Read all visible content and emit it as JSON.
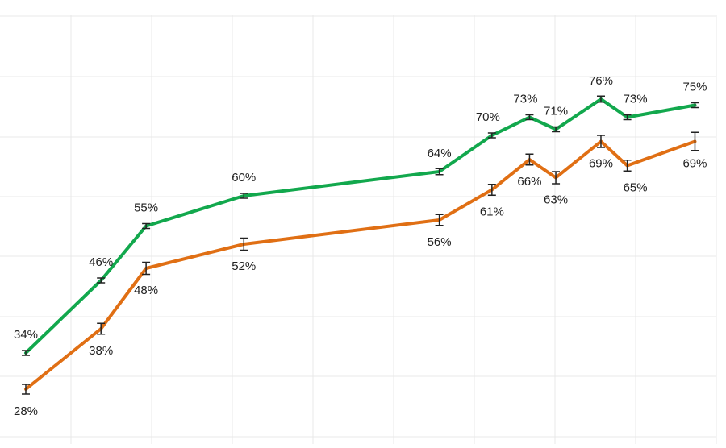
{
  "chart_data": {
    "type": "line",
    "grid": true,
    "legend": "none",
    "x": [
      0,
      1,
      1.6,
      2.9,
      5.5,
      6.2,
      6.7,
      7.05,
      7.65,
      8.0,
      8.9
    ],
    "series": [
      {
        "color": "#12a84d",
        "values": [
          34,
          46,
          55,
          60,
          64,
          70,
          73,
          71,
          76,
          73,
          75
        ],
        "labels": [
          "34%",
          "46%",
          "55%",
          "60%",
          "64%",
          "70%",
          "73%",
          "71%",
          "76%",
          "73%",
          "75%"
        ],
        "error": [
          0.4,
          0.4,
          0.4,
          0.4,
          0.5,
          0.4,
          0.4,
          0.4,
          0.5,
          0.4,
          0.4
        ]
      },
      {
        "color": "#e06f14",
        "values": [
          28,
          38,
          48,
          52,
          56,
          61,
          66,
          63,
          69,
          65,
          69
        ],
        "labels": [
          "28%",
          "38%",
          "48%",
          "52%",
          "56%",
          "61%",
          "66%",
          "63%",
          "69%",
          "65%",
          "69%"
        ],
        "error": [
          0.8,
          0.9,
          1.0,
          1.0,
          0.9,
          0.9,
          0.9,
          1.0,
          1.0,
          0.9,
          1.5
        ]
      }
    ],
    "ylim": [
      21,
      77
    ]
  }
}
